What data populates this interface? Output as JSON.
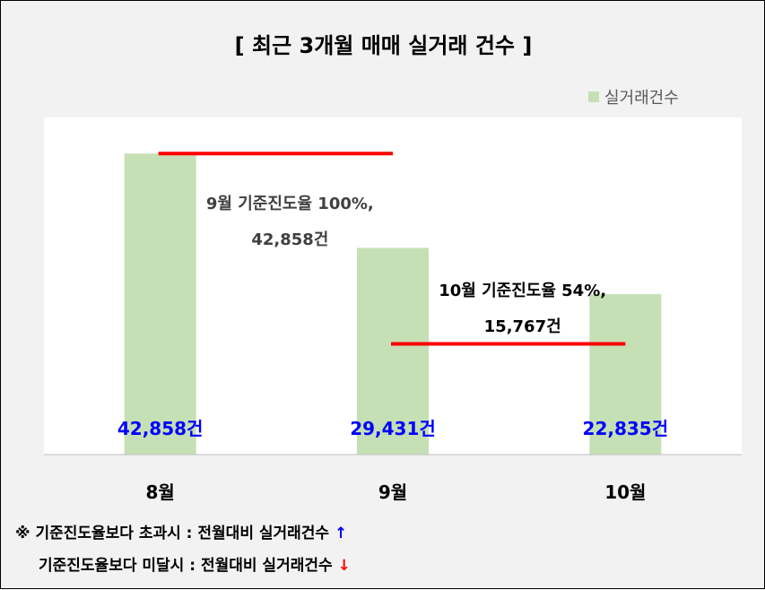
{
  "chart_data": {
    "type": "bar",
    "title": "[ 최근 3개월  매매 실거래 건수 ]",
    "categories": [
      "8월",
      "9월",
      "10월"
    ],
    "series": [
      {
        "name": "실거래건수",
        "values": [
          42858,
          29431,
          22835
        ],
        "color": "#c5e0b4"
      }
    ],
    "value_labels": [
      "42,858건",
      "29,431건",
      "22,835건"
    ],
    "value_label_color": "#0000ff",
    "ylim": [
      0,
      48000
    ],
    "grid": false,
    "legend_position": "top-right",
    "reference_lines": [
      {
        "from_category": "8월",
        "to_category": "9월",
        "value": 42858,
        "color": "#ff0000",
        "annotation_lines": [
          "9월 기준진도율 100%,",
          "42,858건"
        ],
        "annotation_color": "#404040"
      },
      {
        "from_category": "9월",
        "to_category": "10월",
        "value": 15767,
        "color": "#ff0000",
        "annotation_lines": [
          "10월 기준진도율 54%,",
          "15,767건"
        ],
        "annotation_color": "#000000"
      }
    ]
  },
  "notes": [
    {
      "text": "※ 기준진도율보다 초과시 : 전월대비 실거래건수",
      "arrow": "↑",
      "arrow_color": "#0000ff"
    },
    {
      "text": "기준진도율보다 미달시 : 전월대비 실거래건수",
      "arrow": "↓",
      "arrow_color": "#ff0000"
    }
  ]
}
